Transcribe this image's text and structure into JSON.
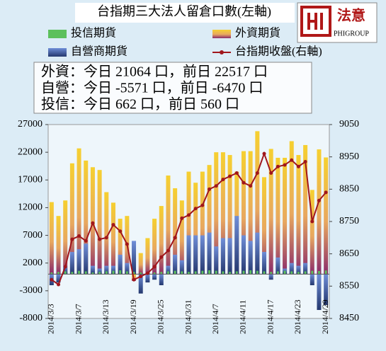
{
  "chart_data": {
    "type": "bar-line",
    "title": "台指期三大法人留倉口數(左軸)",
    "annotations": [
      "外資：今日 21064 口，前日 22517 口",
      "自營：今日 -5571 口，前日 -6470 口",
      "投信：今日 662 口，前日 560 口"
    ],
    "categories": [
      "2014/3/3",
      null,
      null,
      null,
      "2014/3/7",
      null,
      null,
      null,
      "2014/3/13",
      null,
      null,
      null,
      "2014/3/19",
      null,
      null,
      null,
      "2014/3/25",
      null,
      null,
      null,
      "2014/3/31",
      null,
      null,
      null,
      "2014/4/7",
      null,
      null,
      null,
      "2014/4/11",
      null,
      null,
      null,
      "2014/4/17",
      null,
      null,
      null,
      "2014/4/23",
      null,
      null,
      null,
      "2014/4/29"
    ],
    "series": [
      {
        "name": "投信期貨",
        "type": "bar",
        "color": "#5cc05c",
        "values": [
          300,
          400,
          500,
          400,
          600,
          500,
          300,
          400,
          500,
          600,
          700,
          500,
          400,
          300,
          200,
          300,
          400,
          500,
          600,
          500,
          400,
          500,
          600,
          700,
          600,
          500,
          400,
          500,
          600,
          700,
          600,
          500,
          400,
          500,
          600,
          500,
          400,
          500,
          600,
          560,
          662
        ]
      },
      {
        "name": "外資期貨",
        "type": "bar",
        "color": "#f2c428",
        "values": [
          13000,
          10500,
          13300,
          20000,
          22700,
          20500,
          19300,
          18800,
          14800,
          12900,
          10000,
          10500,
          -1200,
          3800,
          6500,
          10000,
          12300,
          17800,
          15500,
          13300,
          18500,
          16500,
          18500,
          19700,
          22000,
          22000,
          21500,
          18500,
          22200,
          22200,
          25800,
          17500,
          22600,
          21000,
          21000,
          24000,
          21500,
          23300,
          15200,
          22517,
          21064
        ]
      },
      {
        "name": "自營商期貨",
        "type": "bar",
        "color": "#3a5cae",
        "values": [
          -2000,
          -1500,
          1500,
          4000,
          4500,
          5500,
          1500,
          1000,
          1500,
          1500,
          3500,
          2000,
          6000,
          -3500,
          -1500,
          -1000,
          -2000,
          1500,
          3500,
          2500,
          7000,
          7000,
          7000,
          7500,
          5000,
          6500,
          6500,
          10500,
          7000,
          6000,
          7500,
          4000,
          -1000,
          3000,
          1000,
          2000,
          1500,
          2000,
          -2000,
          -6470,
          -5571
        ]
      },
      {
        "name": "台指期收盤(右軸)",
        "type": "line",
        "axis": "y2",
        "color": "#a0161c",
        "values": [
          8570,
          8555,
          8610,
          8695,
          8705,
          8690,
          8745,
          8695,
          8700,
          8740,
          8720,
          8680,
          8570,
          8580,
          8590,
          8610,
          8640,
          8660,
          8700,
          8760,
          8770,
          8790,
          8800,
          8850,
          8860,
          8880,
          8890,
          8900,
          8870,
          8860,
          8900,
          8960,
          8900,
          8920,
          8925,
          8940,
          8920,
          8935,
          8750,
          8815,
          8840
        ]
      }
    ],
    "ylim": [
      -8000,
      27000
    ],
    "yticks": [
      -8000,
      -3000,
      2000,
      7000,
      12000,
      17000,
      22000,
      27000
    ],
    "y2lim": [
      8450,
      9050
    ],
    "y2ticks": [
      8450,
      8550,
      8650,
      8750,
      8850,
      8950,
      9050
    ],
    "grid": false
  },
  "logo": {
    "name": "法意",
    "sub": "PHIGROUP"
  }
}
